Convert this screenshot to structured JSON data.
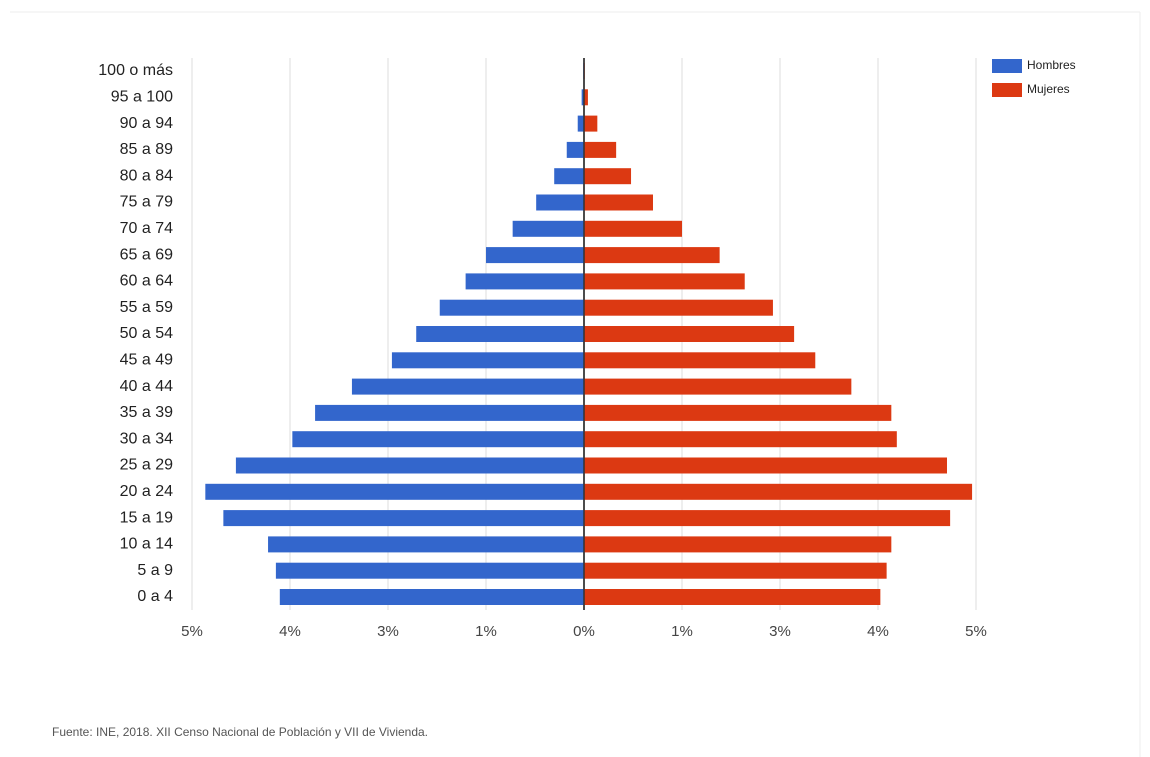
{
  "chart_data": {
    "type": "pyramid",
    "categories": [
      "0 a 4",
      "5 a 9",
      "10 a 14",
      "15 a 19",
      "20 a 24",
      "25 a 29",
      "30 a 34",
      "35 a 39",
      "40 a 44",
      "45 a 49",
      "50 a 54",
      "55 a 59",
      "60 a 64",
      "65 a 69",
      "70 a 74",
      "75 a 79",
      "80 a 84",
      "85 a 89",
      "90 a 94",
      "95 a 100",
      "100 o más"
    ],
    "series": [
      {
        "name": "Hombres",
        "color": "#3366cc",
        "values": [
          -3.88,
          -3.93,
          -4.03,
          -4.6,
          -4.83,
          -4.44,
          -3.72,
          -3.43,
          -2.96,
          -2.45,
          -2.14,
          -1.84,
          -1.51,
          -1.25,
          -0.91,
          -0.61,
          -0.38,
          -0.22,
          -0.08,
          -0.03,
          -0.01
        ]
      },
      {
        "name": "Mujeres",
        "color": "#dc3912",
        "values": [
          3.78,
          3.86,
          3.92,
          4.67,
          4.95,
          4.63,
          3.99,
          3.92,
          3.41,
          2.95,
          2.68,
          2.41,
          2.05,
          1.73,
          1.25,
          0.88,
          0.6,
          0.41,
          0.17,
          0.05,
          0.01
        ]
      }
    ],
    "xlim": [
      -5,
      5
    ],
    "xticks": [
      {
        "value": -5,
        "label": "5%"
      },
      {
        "value": -3.75,
        "label": "4%"
      },
      {
        "value": -2.5,
        "label": "3%"
      },
      {
        "value": -1.25,
        "label": "1%"
      },
      {
        "value": 0,
        "label": "0%"
      },
      {
        "value": 1.25,
        "label": "1%"
      },
      {
        "value": 2.5,
        "label": "3%"
      },
      {
        "value": 3.75,
        "label": "4%"
      },
      {
        "value": 5,
        "label": "5%"
      }
    ],
    "grid": true,
    "legend": "top-right",
    "source": "Fuente: INE, 2018. XII Censo Nacional de Población y VII de Vivienda."
  }
}
